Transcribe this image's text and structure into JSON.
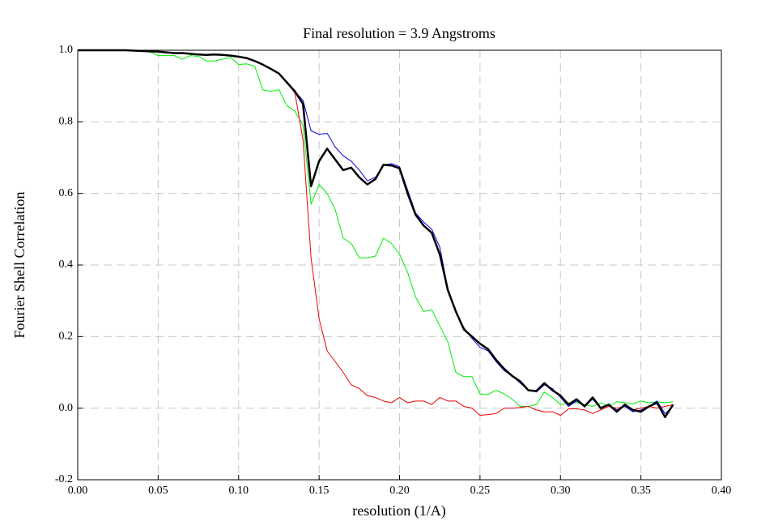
{
  "chart_data": {
    "type": "line",
    "title": "Final resolution =   3.9 Angstroms",
    "xlabel": "resolution (1/A)",
    "ylabel": "Fourier Shell Correlation",
    "xlim": [
      0,
      0.4
    ],
    "ylim": [
      -0.2,
      1.0
    ],
    "xticks": [
      {
        "value": 0,
        "label": "0.00"
      },
      0.05,
      {
        "value": 0.1,
        "label": "0.10"
      },
      0.15,
      {
        "value": 0.2,
        "label": "0.20"
      },
      0.25,
      {
        "value": 0.3,
        "label": "0.30"
      },
      0.35,
      {
        "value": 0.4,
        "label": "0.40"
      }
    ],
    "yticks": [
      -0.2,
      {
        "value": 0,
        "label": "0.0"
      },
      0.2,
      0.4,
      0.6,
      0.8,
      {
        "value": 1,
        "label": "1.0"
      }
    ],
    "grid": true,
    "x": [
      0,
      0.005,
      0.01,
      0.015,
      0.02,
      0.025,
      0.03,
      0.035,
      0.04,
      0.045,
      0.05,
      0.055,
      0.06,
      0.065,
      0.07,
      0.075,
      0.08,
      0.085,
      0.09,
      0.095,
      0.1,
      0.105,
      0.11,
      0.115,
      0.12,
      0.125,
      0.13,
      0.135,
      0.14,
      0.145,
      0.15,
      0.155,
      0.16,
      0.165,
      0.17,
      0.175,
      0.18,
      0.185,
      0.19,
      0.195,
      0.2,
      0.205,
      0.21,
      0.215,
      0.22,
      0.225,
      0.23,
      0.235,
      0.24,
      0.245,
      0.25,
      0.255,
      0.26,
      0.265,
      0.27,
      0.275,
      0.28,
      0.285,
      0.29,
      0.295,
      0.3,
      0.305,
      0.31,
      0.315,
      0.32,
      0.325,
      0.33,
      0.335,
      0.34,
      0.345,
      0.35,
      0.355,
      0.36,
      0.365,
      0.37
    ],
    "series": [
      {
        "color": "#00ee00",
        "width": 1,
        "values": [
          1.0,
          1.0,
          1.0,
          1.0,
          1.0,
          1.0,
          1.0,
          0.999,
          0.998,
          0.995,
          0.985,
          0.985,
          0.985,
          0.975,
          0.985,
          0.983,
          0.97,
          0.97,
          0.975,
          0.98,
          0.96,
          0.962,
          0.955,
          0.89,
          0.885,
          0.89,
          0.845,
          0.83,
          0.79,
          0.57,
          0.625,
          0.6,
          0.555,
          0.475,
          0.46,
          0.42,
          0.42,
          0.425,
          0.475,
          0.46,
          0.43,
          0.38,
          0.31,
          0.27,
          0.275,
          0.23,
          0.185,
          0.1,
          0.088,
          0.088,
          0.04,
          0.038,
          0.05,
          0.04,
          0.025,
          0.005,
          0.005,
          0.01,
          0.045,
          0.03,
          0.01,
          0.015,
          0.015,
          0.01,
          0.005,
          0.015,
          0.005,
          0.018,
          0.015,
          0.012,
          0.02,
          0.015,
          0.018,
          0.015,
          0.018
        ]
      },
      {
        "color": "#ee0000",
        "width": 1,
        "values": [
          1.0,
          1.0,
          1.0,
          1.0,
          1.0,
          1.0,
          1.0,
          0.999,
          0.998,
          0.997,
          0.996,
          0.994,
          0.992,
          0.992,
          0.99,
          0.988,
          0.987,
          0.988,
          0.987,
          0.985,
          0.982,
          0.978,
          0.97,
          0.96,
          0.948,
          0.935,
          0.91,
          0.88,
          0.75,
          0.42,
          0.25,
          0.16,
          0.13,
          0.1,
          0.065,
          0.055,
          0.035,
          0.03,
          0.02,
          0.015,
          0.03,
          0.015,
          0.02,
          0.02,
          0.01,
          0.03,
          0.02,
          0.02,
          0.005,
          0.0,
          -0.02,
          -0.018,
          -0.015,
          0.0,
          0.0,
          0.002,
          0.005,
          -0.005,
          -0.01,
          -0.01,
          -0.02,
          -0.002,
          -0.002,
          -0.005,
          -0.015,
          -0.005,
          0.005,
          0.0,
          0.005,
          -0.005,
          0.0,
          0.005,
          0.0,
          0.005,
          0.01
        ]
      },
      {
        "color": "#0000dd",
        "width": 1,
        "values": [
          1.0,
          1.0,
          1.0,
          1.0,
          1.0,
          1.0,
          1.0,
          0.999,
          0.998,
          0.997,
          0.996,
          0.994,
          0.992,
          0.992,
          0.99,
          0.988,
          0.987,
          0.988,
          0.987,
          0.985,
          0.982,
          0.978,
          0.97,
          0.96,
          0.948,
          0.935,
          0.91,
          0.885,
          0.86,
          0.775,
          0.765,
          0.768,
          0.73,
          0.705,
          0.69,
          0.665,
          0.635,
          0.645,
          0.68,
          0.683,
          0.675,
          0.61,
          0.545,
          0.52,
          0.5,
          0.45,
          0.335,
          0.27,
          0.225,
          0.195,
          0.17,
          0.16,
          0.13,
          0.105,
          0.09,
          0.07,
          0.05,
          0.045,
          0.065,
          0.055,
          0.03,
          0.005,
          0.02,
          0.005,
          0.025,
          0.0,
          0.01,
          -0.005,
          0.005,
          -0.01,
          -0.005,
          0.005,
          0.02,
          -0.015,
          0.005
        ]
      },
      {
        "color": "#000000",
        "width": 2.5,
        "values": [
          1.0,
          1.0,
          1.0,
          1.0,
          1.0,
          1.0,
          1.0,
          0.999,
          0.998,
          0.997,
          0.996,
          0.994,
          0.992,
          0.992,
          0.99,
          0.988,
          0.987,
          0.988,
          0.987,
          0.985,
          0.982,
          0.978,
          0.97,
          0.96,
          0.948,
          0.935,
          0.91,
          0.885,
          0.85,
          0.62,
          0.69,
          0.725,
          0.695,
          0.665,
          0.672,
          0.645,
          0.625,
          0.64,
          0.68,
          0.678,
          0.67,
          0.6,
          0.54,
          0.51,
          0.49,
          0.43,
          0.33,
          0.27,
          0.22,
          0.2,
          0.18,
          0.165,
          0.135,
          0.11,
          0.09,
          0.075,
          0.05,
          0.048,
          0.07,
          0.05,
          0.035,
          0.01,
          0.025,
          0.005,
          0.03,
          0.0,
          0.01,
          -0.01,
          0.01,
          -0.005,
          -0.01,
          0.005,
          0.015,
          -0.025,
          0.01
        ]
      }
    ]
  }
}
